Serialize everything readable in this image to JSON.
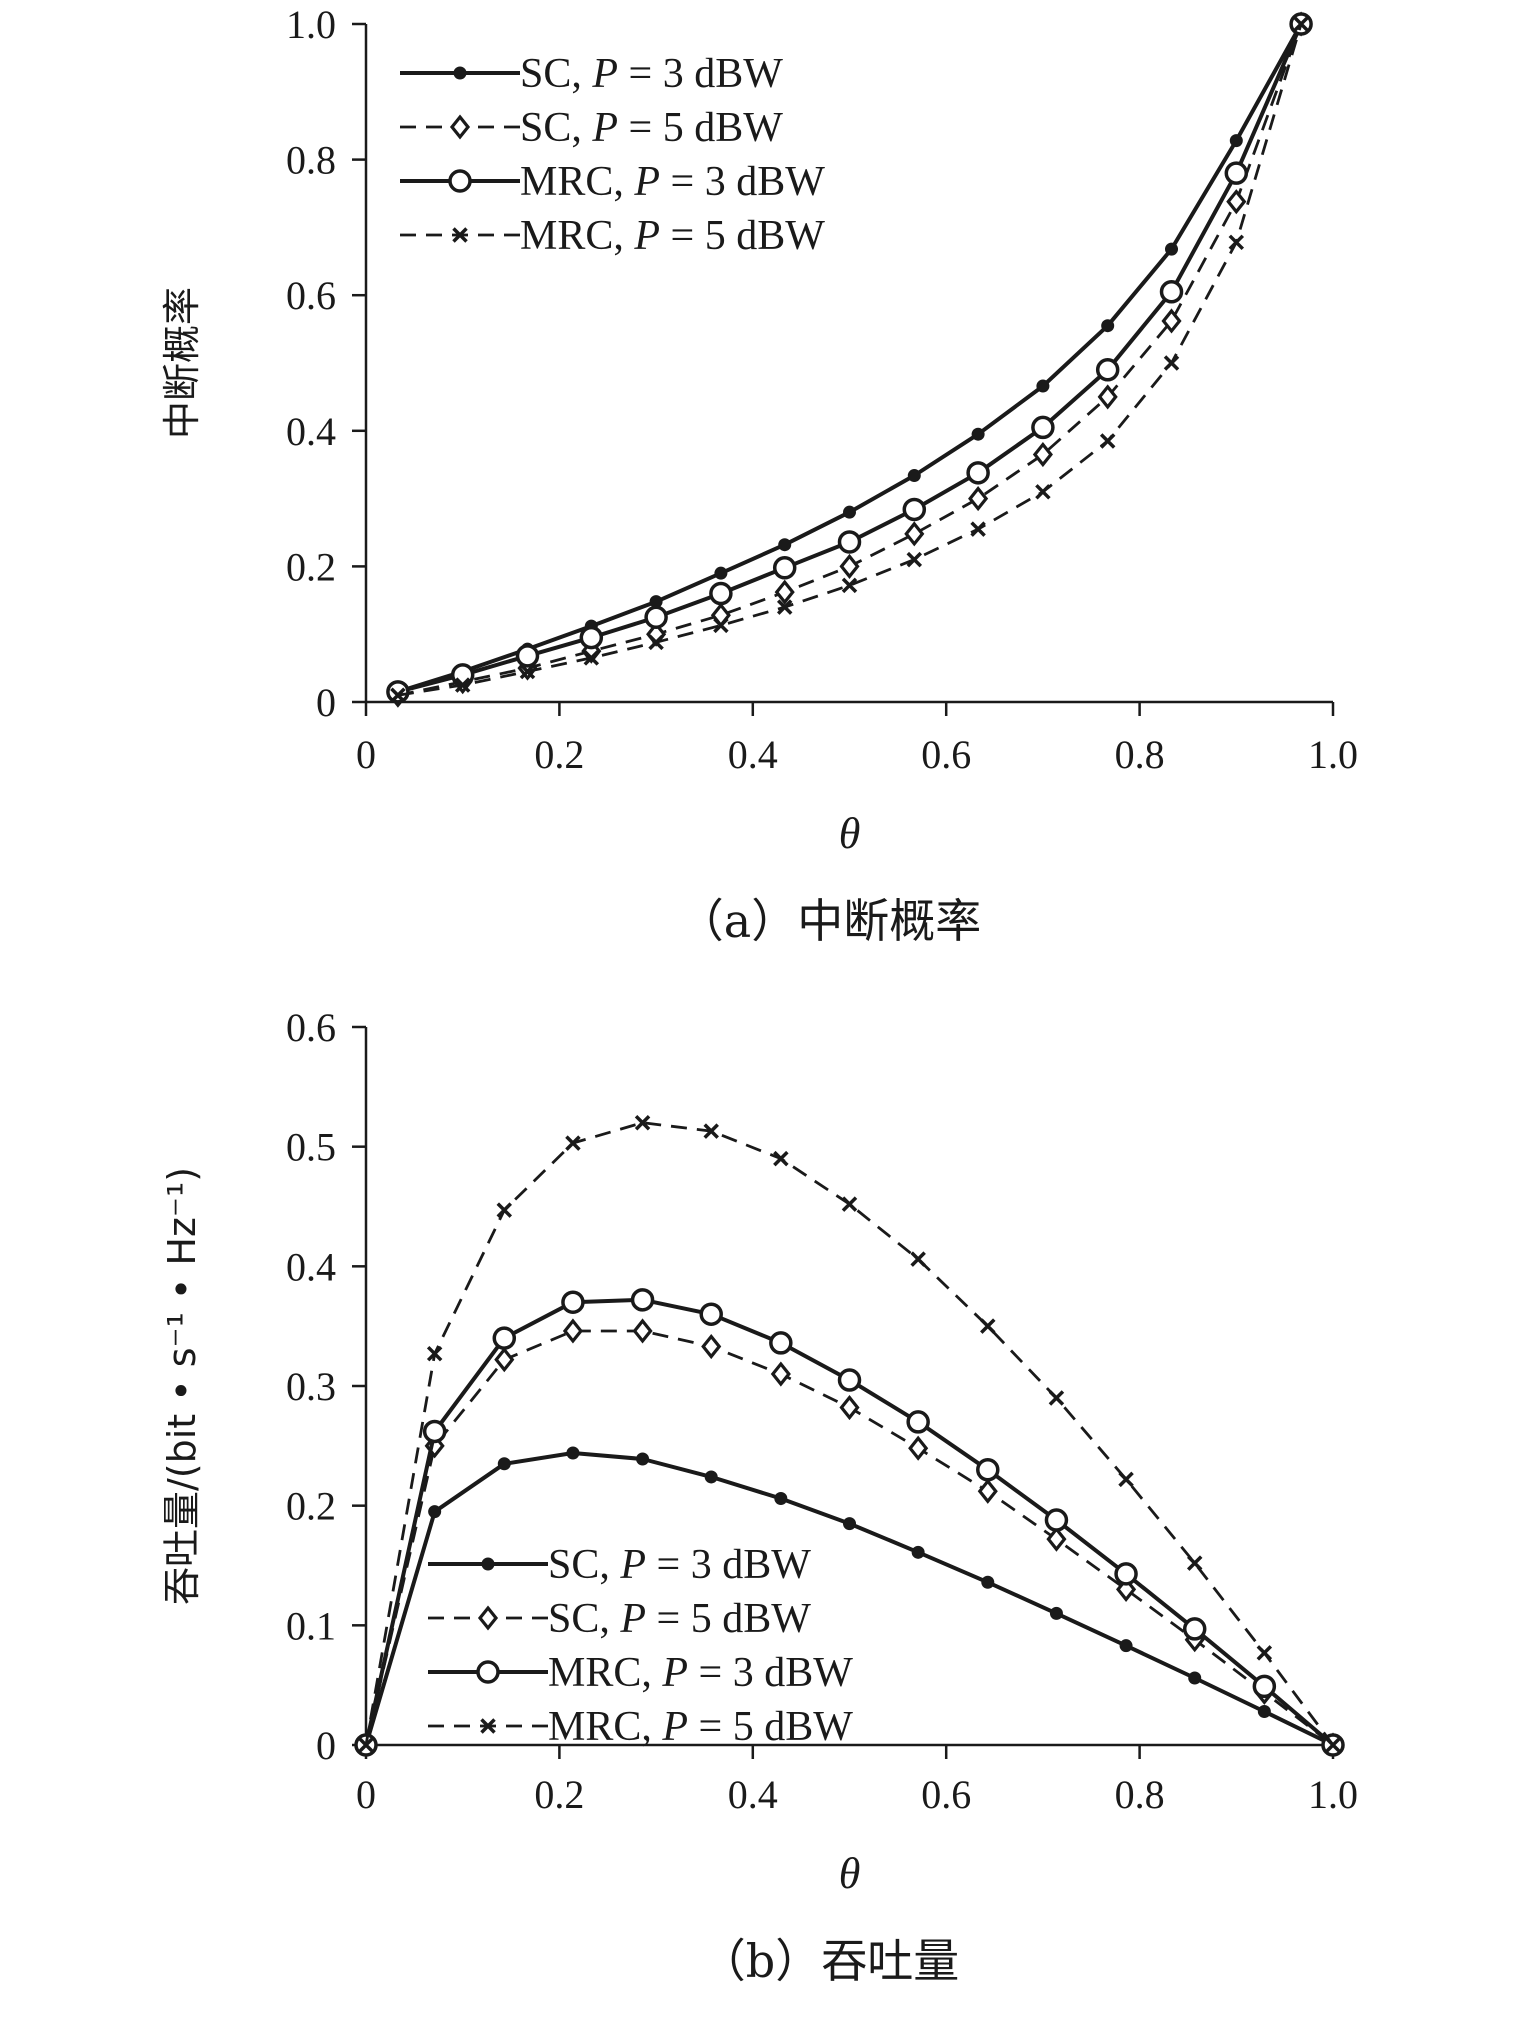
{
  "chart_data": [
    {
      "type": "line",
      "caption": "（a）中断概率",
      "xlabel": "θ",
      "ylabel": "中断概率",
      "xlim": [
        0,
        1.0
      ],
      "ylim": [
        0,
        1.0
      ],
      "xticks": [
        "0",
        "0.2",
        "0.4",
        "0.6",
        "0.8",
        "1.0"
      ],
      "xtick_values": [
        0,
        0.2,
        0.4,
        0.6,
        0.8,
        1.0
      ],
      "yticks": [
        "0",
        "0.2",
        "0.4",
        "0.6",
        "0.8",
        "1.0"
      ],
      "ytick_values": [
        0,
        0.2,
        0.4,
        0.6,
        0.8,
        1.0
      ],
      "legend_position": "top-left",
      "x": [
        0.033,
        0.1,
        0.167,
        0.233,
        0.3,
        0.367,
        0.433,
        0.5,
        0.567,
        0.633,
        0.7,
        0.767,
        0.833,
        0.9,
        0.967
      ],
      "series": [
        {
          "name": [
            "SC, ",
            "P",
            " = 3 dBW"
          ],
          "style": "solid",
          "marker": "dot",
          "values": [
            0.015,
            0.045,
            0.078,
            0.112,
            0.148,
            0.19,
            0.232,
            0.28,
            0.334,
            0.395,
            0.466,
            0.555,
            0.668,
            0.828,
            1.0
          ]
        },
        {
          "name": [
            "SC, ",
            "P",
            " = 5 dBW"
          ],
          "style": "dashed",
          "marker": "diamond",
          "values": [
            0.01,
            0.03,
            0.05,
            0.075,
            0.1,
            0.128,
            0.162,
            0.2,
            0.248,
            0.3,
            0.365,
            0.45,
            0.562,
            0.738,
            1.0
          ]
        },
        {
          "name": [
            "MRC, ",
            "P",
            " = 3 dBW"
          ],
          "style": "solid",
          "marker": "circle",
          "values": [
            0.015,
            0.04,
            0.068,
            0.095,
            0.125,
            0.16,
            0.198,
            0.236,
            0.284,
            0.338,
            0.405,
            0.49,
            0.605,
            0.78,
            1.0
          ]
        },
        {
          "name": [
            "MRC, ",
            "P",
            " = 5 dBW"
          ],
          "style": "dashed",
          "marker": "x",
          "values": [
            0.01,
            0.025,
            0.045,
            0.065,
            0.088,
            0.113,
            0.14,
            0.172,
            0.21,
            0.255,
            0.31,
            0.385,
            0.5,
            0.678,
            1.0
          ]
        }
      ]
    },
    {
      "type": "line",
      "caption": "（b）吞吐量",
      "xlabel": "θ",
      "ylabel": "吞吐量/(bit • s⁻¹ • Hz⁻¹)",
      "xlim": [
        0,
        1.0
      ],
      "ylim": [
        0,
        0.6
      ],
      "xticks": [
        "0",
        "0.2",
        "0.4",
        "0.6",
        "0.8",
        "1.0"
      ],
      "xtick_values": [
        0,
        0.2,
        0.4,
        0.6,
        0.8,
        1.0
      ],
      "yticks": [
        "0",
        "0.1",
        "0.2",
        "0.3",
        "0.4",
        "0.5",
        "0.6"
      ],
      "ytick_values": [
        0,
        0.1,
        0.2,
        0.3,
        0.4,
        0.5,
        0.6
      ],
      "legend_position": "bottom-left",
      "x": [
        0,
        0.071,
        0.143,
        0.214,
        0.286,
        0.357,
        0.429,
        0.5,
        0.571,
        0.643,
        0.714,
        0.786,
        0.857,
        0.929,
        1.0
      ],
      "series": [
        {
          "name": [
            "SC, ",
            "P",
            " = 3 dBW"
          ],
          "style": "solid",
          "marker": "dot",
          "values": [
            0,
            0.195,
            0.235,
            0.244,
            0.239,
            0.224,
            0.206,
            0.185,
            0.161,
            0.136,
            0.11,
            0.083,
            0.056,
            0.028,
            0
          ]
        },
        {
          "name": [
            "SC, ",
            "P",
            " = 5 dBW"
          ],
          "style": "dashed",
          "marker": "diamond",
          "values": [
            0,
            0.25,
            0.322,
            0.346,
            0.346,
            0.333,
            0.31,
            0.282,
            0.248,
            0.212,
            0.172,
            0.13,
            0.088,
            0.044,
            0
          ]
        },
        {
          "name": [
            "MRC, ",
            "P",
            " = 3 dBW"
          ],
          "style": "solid",
          "marker": "circle",
          "values": [
            0,
            0.262,
            0.34,
            0.37,
            0.372,
            0.36,
            0.336,
            0.305,
            0.27,
            0.23,
            0.188,
            0.143,
            0.097,
            0.049,
            0
          ]
        },
        {
          "name": [
            "MRC, ",
            "P",
            " = 5 dBW"
          ],
          "style": "dashed",
          "marker": "x",
          "values": [
            0,
            0.327,
            0.447,
            0.503,
            0.52,
            0.513,
            0.49,
            0.452,
            0.406,
            0.35,
            0.29,
            0.222,
            0.152,
            0.077,
            0
          ]
        }
      ]
    }
  ]
}
